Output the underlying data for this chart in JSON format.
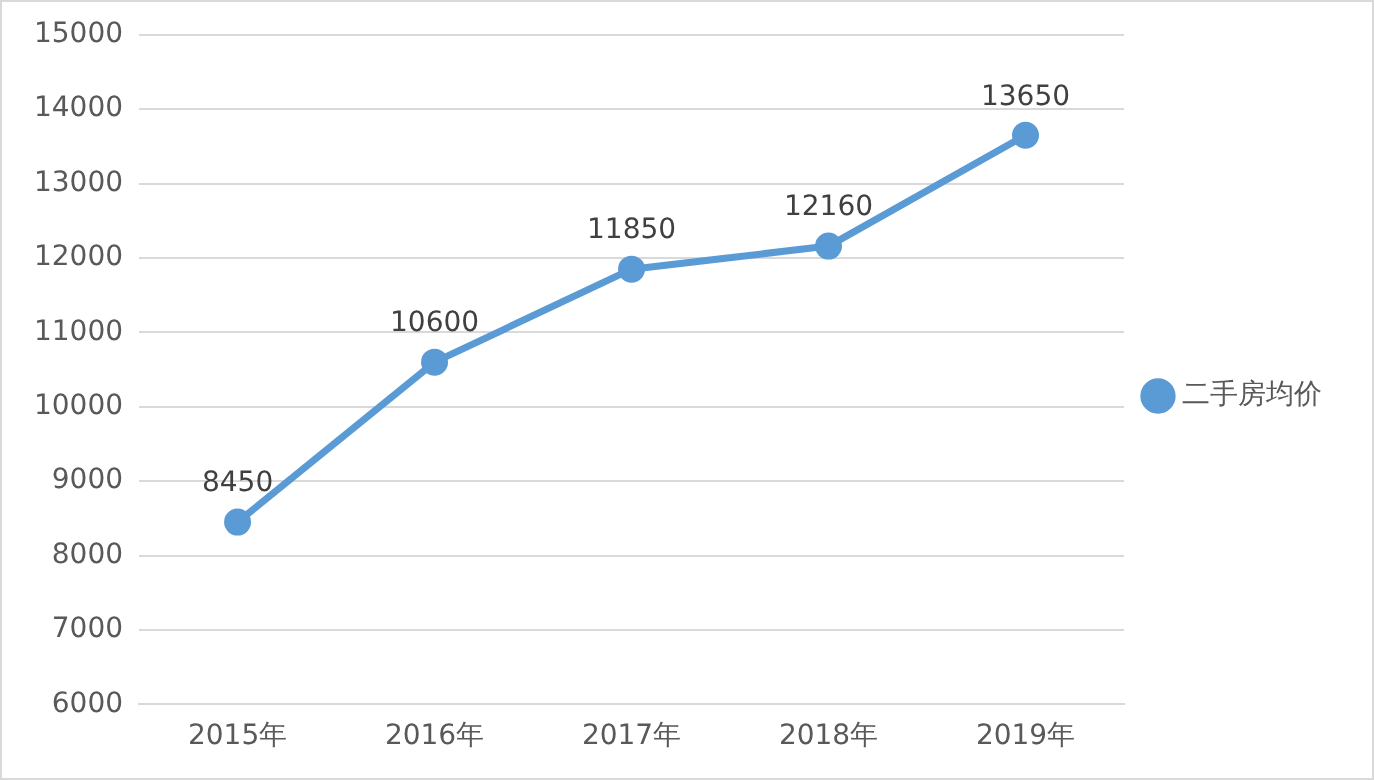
{
  "chart_data": {
    "type": "line",
    "categories": [
      "2015年",
      "2016年",
      "2017年",
      "2018年",
      "2019年"
    ],
    "series": [
      {
        "name": "二手房均价",
        "color": "#5b9bd5",
        "values": [
          8450,
          10600,
          11850,
          12160,
          13650
        ]
      }
    ],
    "ylim": [
      6000,
      15000
    ],
    "yticks": [
      6000,
      7000,
      8000,
      9000,
      10000,
      11000,
      12000,
      13000,
      14000,
      15000
    ],
    "grid": "y",
    "legend": "right",
    "marker": "circle",
    "line_style": "solid",
    "data_labels": true
  }
}
